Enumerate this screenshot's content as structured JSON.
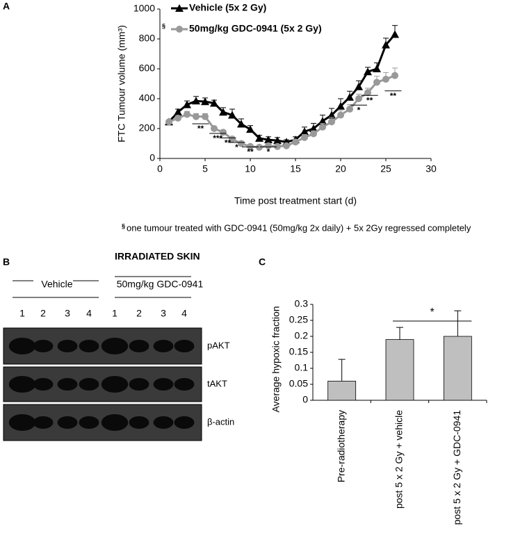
{
  "chart_data": [
    {
      "type": "line",
      "panel": "A",
      "ylabel": "FTC Tumour volume (mm³)",
      "xlabel": "Time post treatment start (d)",
      "xlim": [
        0,
        30
      ],
      "xticks": [
        0,
        5,
        10,
        15,
        20,
        25,
        30
      ],
      "ylim": [
        0,
        1000
      ],
      "yticks": [
        0,
        200,
        400,
        600,
        800,
        1000
      ],
      "x": [
        1,
        2,
        3,
        4,
        5,
        6,
        7,
        8,
        9,
        10,
        11,
        12,
        13,
        14,
        15,
        16,
        17,
        18,
        19,
        20,
        21,
        22,
        23,
        24,
        25,
        26
      ],
      "series": [
        {
          "name": "Vehicle (5x 2 Gy)",
          "color": "#000000",
          "marker": "triangle",
          "values": [
            245,
            310,
            360,
            385,
            380,
            370,
            310,
            290,
            230,
            195,
            135,
            125,
            120,
            110,
            125,
            180,
            200,
            250,
            290,
            350,
            410,
            480,
            580,
            600,
            760,
            830
          ],
          "errors": [
            10,
            20,
            25,
            30,
            25,
            20,
            30,
            40,
            35,
            25,
            20,
            20,
            20,
            15,
            20,
            30,
            35,
            40,
            45,
            50,
            40,
            40,
            30,
            40,
            45,
            60
          ]
        },
        {
          "name": "50mg/kg GDC-0941 (5x 2 Gy)",
          "legend_mark": "§",
          "color": "#999999",
          "marker": "circle",
          "values": [
            245,
            270,
            295,
            280,
            280,
            200,
            175,
            130,
            100,
            80,
            75,
            85,
            80,
            85,
            110,
            140,
            165,
            210,
            245,
            290,
            330,
            400,
            440,
            510,
            530,
            555
          ],
          "errors": [
            10,
            15,
            20,
            20,
            20,
            15,
            15,
            15,
            15,
            10,
            10,
            10,
            10,
            10,
            15,
            20,
            20,
            25,
            30,
            30,
            30,
            30,
            30,
            40,
            45,
            50
          ]
        }
      ],
      "annotations": [
        {
          "text": "**",
          "x": 4.5,
          "y": 195
        },
        {
          "text": "***",
          "x": 6.4,
          "y": 130
        },
        {
          "text": "**",
          "x": 7.5,
          "y": 100
        },
        {
          "text": "*",
          "x": 8.5,
          "y": 70
        },
        {
          "text": "**",
          "x": 10,
          "y": 40
        },
        {
          "text": "*",
          "x": 12,
          "y": 40
        },
        {
          "text": "*",
          "x": 22,
          "y": 320
        },
        {
          "text": "**",
          "x": 23.2,
          "y": 385
        },
        {
          "text": "**",
          "x": 25.8,
          "y": 415
        }
      ],
      "footnote_mark": "§",
      "footnote": "one tumour treated with GDC-0941 (50mg/kg 2x daily) + 5x 2Gy regressed completely"
    },
    {
      "type": "bar",
      "panel": "C",
      "ylabel": "Average hypoxic fraction",
      "color": "#bfbfbf",
      "categories": [
        "Pre-radiotherapy",
        "post 5 x 2 Gy + vehicle",
        "post 5 x 2 Gy + GDC-0941"
      ],
      "values": [
        0.06,
        0.19,
        0.2
      ],
      "errors": [
        0.068,
        0.038,
        0.08
      ],
      "ylim": [
        0,
        0.3
      ],
      "yticks": [
        0,
        0.05,
        0.1,
        0.15,
        0.2,
        0.25,
        0.3
      ],
      "significance": "*"
    }
  ],
  "blot": {
    "panel": "B",
    "title": "IRRADIATED SKIN",
    "groups": [
      "Vehicle",
      "50mg/kg GDC-0941"
    ],
    "lanes": [
      "1",
      "2",
      "3",
      "4",
      "1",
      "2",
      "3",
      "4"
    ],
    "rows": [
      "pAKT",
      "tAKT",
      "β-actin"
    ]
  }
}
